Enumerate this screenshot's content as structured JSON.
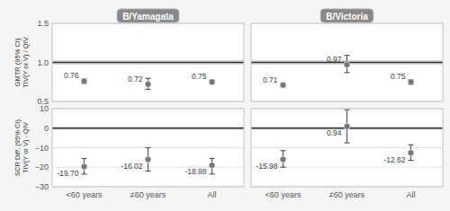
{
  "chart_data": [
    {
      "type": "errorbar",
      "title": "B/Yamagata",
      "ylabel": "GMTR (95% CI)\nTIV(Y or V) / QIV",
      "categories": [
        "<60 years",
        "≠60 years",
        "All"
      ],
      "values": [
        0.76,
        0.72,
        0.75
      ],
      "ci_low": [
        0.73,
        0.655,
        0.725
      ],
      "ci_high": [
        0.79,
        0.795,
        0.775
      ],
      "color": "#777777",
      "ylim": [
        0.5,
        1.5
      ],
      "yticks": [
        0.5,
        {
          "value": 1.0,
          "label": "1.0"
        },
        1.5
      ],
      "reference_line": 1.0,
      "reference_band": [
        0.97,
        1.03
      ],
      "grid": true,
      "data_labels": true,
      "tick_labels": "y"
    },
    {
      "type": "errorbar",
      "title": "B/Victoria",
      "categories": [
        "<60 years",
        "≠60 years",
        "All"
      ],
      "values": [
        0.71,
        0.97,
        0.75
      ],
      "ci_low": [
        0.685,
        0.87,
        0.72
      ],
      "ci_high": [
        0.735,
        1.09,
        0.78
      ],
      "color": "#777777",
      "ylim": [
        0.5,
        1.5
      ],
      "yticks": [
        0.5,
        {
          "value": 1.0,
          "label": "1.0"
        },
        1.5
      ],
      "reference_line": 1.0,
      "reference_band": [
        0.97,
        1.03
      ],
      "grid": true,
      "data_labels": true,
      "tick_labels": false
    },
    {
      "type": "errorbar",
      "ylabel": "SCR Diff. (95% CI)\nTIV(Y or V) - QIV",
      "categories": [
        "<60 years",
        "≠60 years",
        "All"
      ],
      "values": [
        -19.7,
        -16.02,
        -18.98
      ],
      "value_labels": [
        "-19.70",
        "-16.02",
        "-18.98"
      ],
      "ci_low": [
        -23.5,
        -22.0,
        -23.5
      ],
      "ci_high": [
        -15.5,
        -10.0,
        -15.5
      ],
      "color": "#777777",
      "ylim": [
        -30,
        10
      ],
      "yticks": [
        {
          "value": -30,
          "label": "−30"
        },
        {
          "value": -20,
          "label": "−20"
        },
        {
          "value": -10,
          "label": "−10"
        },
        0,
        10
      ],
      "reference_line": 0.0,
      "reference_band": [
        -0.8,
        0.8
      ],
      "grid": true,
      "data_labels": true
    },
    {
      "type": "errorbar",
      "categories": [
        "<60 years",
        "≠60 years",
        "All"
      ],
      "values": [
        -15.98,
        0.94,
        -12.62
      ],
      "ci_low": [
        -20.0,
        -7.5,
        -16.5
      ],
      "ci_high": [
        -11.5,
        9.5,
        -8.5
      ],
      "color": "#777777",
      "ylim": [
        -30,
        10
      ],
      "yticks": [
        {
          "value": -30,
          "label": "−30"
        },
        {
          "value": -20,
          "label": "−20"
        },
        {
          "value": -10,
          "label": "−10"
        },
        0,
        10
      ],
      "reference_line": 0.0,
      "reference_band": [
        -0.8,
        0.8
      ],
      "grid": true,
      "data_labels": true,
      "tick_labels": "x"
    }
  ]
}
